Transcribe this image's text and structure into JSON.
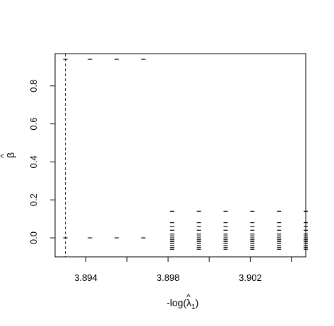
{
  "chart_data": {
    "type": "scatter",
    "title": "",
    "xlabel": "-log(λ̂₁)",
    "ylabel": "β̂",
    "xlabel_text": "-log(",
    "xlabel_lambda": "λ",
    "xlabel_hat": "^",
    "xlabel_sub": "1",
    "xlabel_close": ")",
    "ylabel_text": "β",
    "ylabel_hat": "^",
    "xlim": [
      3.8925,
      3.9047
    ],
    "ylim": [
      -0.1,
      0.97
    ],
    "xticks": [
      3.894,
      3.896,
      3.898,
      3.9,
      3.902,
      3.904
    ],
    "xtick_labels": [
      "3.894",
      "",
      "3.898",
      "",
      "3.902",
      ""
    ],
    "yticks": [
      0.0,
      0.2,
      0.4,
      0.6,
      0.8
    ],
    "ytick_labels": [
      "0.0",
      "0.2",
      "0.4",
      "0.6",
      "0.8"
    ],
    "vline": {
      "x": 3.893,
      "style": "dashed"
    },
    "marker": "-",
    "columns": [
      {
        "x": 3.893,
        "values": [
          0.94,
          0.0
        ]
      },
      {
        "x": 3.8942,
        "values": [
          0.94,
          0.0
        ]
      },
      {
        "x": 3.8955,
        "values": [
          0.94,
          0.0
        ]
      },
      {
        "x": 3.8968,
        "values": [
          0.94,
          0.0
        ]
      },
      {
        "x": 3.8982,
        "values": [
          0.14,
          0.08,
          0.06,
          0.04,
          0.02,
          0.01,
          0.0,
          -0.01,
          -0.02,
          -0.03,
          -0.04,
          -0.05,
          -0.06
        ]
      },
      {
        "x": 3.8995,
        "values": [
          0.14,
          0.08,
          0.06,
          0.04,
          0.02,
          0.01,
          0.0,
          -0.01,
          -0.02,
          -0.03,
          -0.04,
          -0.05,
          -0.06
        ]
      },
      {
        "x": 3.9008,
        "values": [
          0.14,
          0.08,
          0.06,
          0.04,
          0.02,
          0.01,
          0.0,
          -0.01,
          -0.02,
          -0.03,
          -0.04,
          -0.05,
          -0.06
        ]
      },
      {
        "x": 3.9021,
        "values": [
          0.14,
          0.08,
          0.06,
          0.04,
          0.02,
          0.01,
          0.0,
          -0.01,
          -0.02,
          -0.03,
          -0.04,
          -0.05,
          -0.06
        ]
      },
      {
        "x": 3.9034,
        "values": [
          0.14,
          0.08,
          0.06,
          0.04,
          0.02,
          0.01,
          0.0,
          -0.01,
          -0.02,
          -0.03,
          -0.04,
          -0.05,
          -0.06
        ]
      },
      {
        "x": 3.9047,
        "values": [
          0.14,
          0.08,
          0.06,
          0.04,
          0.02,
          0.01,
          0.0,
          -0.01,
          -0.02,
          -0.03,
          -0.04,
          -0.05,
          -0.06
        ]
      }
    ],
    "grid": false,
    "legend": "none"
  }
}
